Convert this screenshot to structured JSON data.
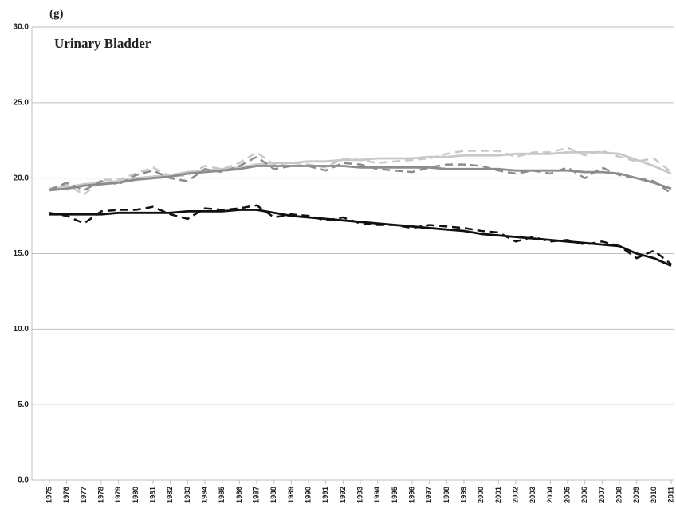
{
  "chart_data": {
    "type": "line",
    "panel_label": "(g)",
    "title": "Urinary Bladder",
    "categories": [
      "1975",
      "1976",
      "1977",
      "1978",
      "1979",
      "1980",
      "1981",
      "1982",
      "1983",
      "1984",
      "1985",
      "1986",
      "1987",
      "1988",
      "1989",
      "1990",
      "1991",
      "1992",
      "1993",
      "1994",
      "1995",
      "1996",
      "1997",
      "1998",
      "1999",
      "2000",
      "2001",
      "2002",
      "2003",
      "2004",
      "2005",
      "2006",
      "2007",
      "2008",
      "2009",
      "2010",
      "2011"
    ],
    "ylim": [
      0,
      30
    ],
    "yticks": [
      {
        "value": 0,
        "label": "0.0"
      },
      {
        "value": 5,
        "label": "5.0"
      },
      {
        "value": 10,
        "label": "10.0"
      },
      {
        "value": 15,
        "label": "15.0"
      },
      {
        "value": 20,
        "label": "20.0"
      },
      {
        "value": 25,
        "label": "25.0"
      },
      {
        "value": 30,
        "label": "30.0"
      }
    ],
    "grid": true,
    "series": [
      {
        "color": "#c8c8c8",
        "dashed": false,
        "values": [
          19.3,
          19.4,
          19.6,
          19.7,
          19.8,
          20.0,
          20.1,
          20.2,
          20.4,
          20.5,
          20.6,
          20.7,
          20.9,
          21.0,
          21.0,
          21.1,
          21.1,
          21.2,
          21.2,
          21.3,
          21.3,
          21.3,
          21.4,
          21.4,
          21.5,
          21.5,
          21.5,
          21.6,
          21.6,
          21.6,
          21.7,
          21.7,
          21.7,
          21.6,
          21.2,
          20.8,
          20.3
        ]
      },
      {
        "color": "#c8c8c8",
        "dashed": true,
        "values": [
          19.3,
          19.6,
          18.9,
          19.9,
          19.9,
          20.3,
          20.7,
          20.1,
          20.2,
          20.8,
          20.6,
          21.0,
          21.7,
          20.9,
          21.0,
          20.9,
          20.7,
          21.3,
          21.2,
          21.0,
          21.1,
          21.2,
          21.3,
          21.6,
          21.8,
          21.8,
          21.8,
          21.4,
          21.7,
          21.7,
          22.0,
          21.5,
          21.8,
          21.4,
          21.1,
          21.3,
          20.4
        ]
      },
      {
        "color": "#8c8c8c",
        "dashed": false,
        "values": [
          19.2,
          19.3,
          19.5,
          19.6,
          19.7,
          19.9,
          20.0,
          20.1,
          20.3,
          20.4,
          20.5,
          20.6,
          20.8,
          20.8,
          20.8,
          20.8,
          20.8,
          20.8,
          20.7,
          20.7,
          20.7,
          20.7,
          20.7,
          20.6,
          20.6,
          20.6,
          20.6,
          20.5,
          20.5,
          20.5,
          20.5,
          20.4,
          20.4,
          20.3,
          20.0,
          19.7,
          19.3
        ]
      },
      {
        "color": "#8c8c8c",
        "dashed": true,
        "values": [
          19.2,
          19.7,
          19.2,
          19.8,
          19.6,
          20.2,
          20.5,
          20.0,
          19.8,
          20.6,
          20.4,
          20.8,
          21.4,
          20.6,
          20.8,
          20.8,
          20.5,
          21.0,
          20.9,
          20.6,
          20.5,
          20.4,
          20.7,
          20.9,
          20.9,
          20.8,
          20.5,
          20.3,
          20.5,
          20.3,
          20.7,
          20.0,
          20.7,
          20.2,
          20.0,
          19.8,
          19.0
        ]
      },
      {
        "color": "#111111",
        "dashed": false,
        "values": [
          17.6,
          17.6,
          17.6,
          17.6,
          17.7,
          17.7,
          17.7,
          17.7,
          17.8,
          17.8,
          17.8,
          17.9,
          17.9,
          17.7,
          17.5,
          17.4,
          17.3,
          17.2,
          17.1,
          17.0,
          16.9,
          16.8,
          16.7,
          16.6,
          16.5,
          16.3,
          16.2,
          16.1,
          16.0,
          15.9,
          15.8,
          15.7,
          15.6,
          15.5,
          15.0,
          14.7,
          14.2
        ]
      },
      {
        "color": "#111111",
        "dashed": true,
        "values": [
          17.7,
          17.5,
          17.0,
          17.8,
          17.9,
          17.9,
          18.1,
          17.6,
          17.3,
          18.0,
          17.9,
          18.0,
          18.2,
          17.4,
          17.6,
          17.5,
          17.2,
          17.4,
          17.0,
          16.9,
          16.9,
          16.7,
          16.9,
          16.8,
          16.7,
          16.5,
          16.4,
          15.8,
          16.1,
          15.8,
          15.9,
          15.6,
          15.8,
          15.5,
          14.7,
          15.2,
          14.3
        ]
      }
    ]
  }
}
